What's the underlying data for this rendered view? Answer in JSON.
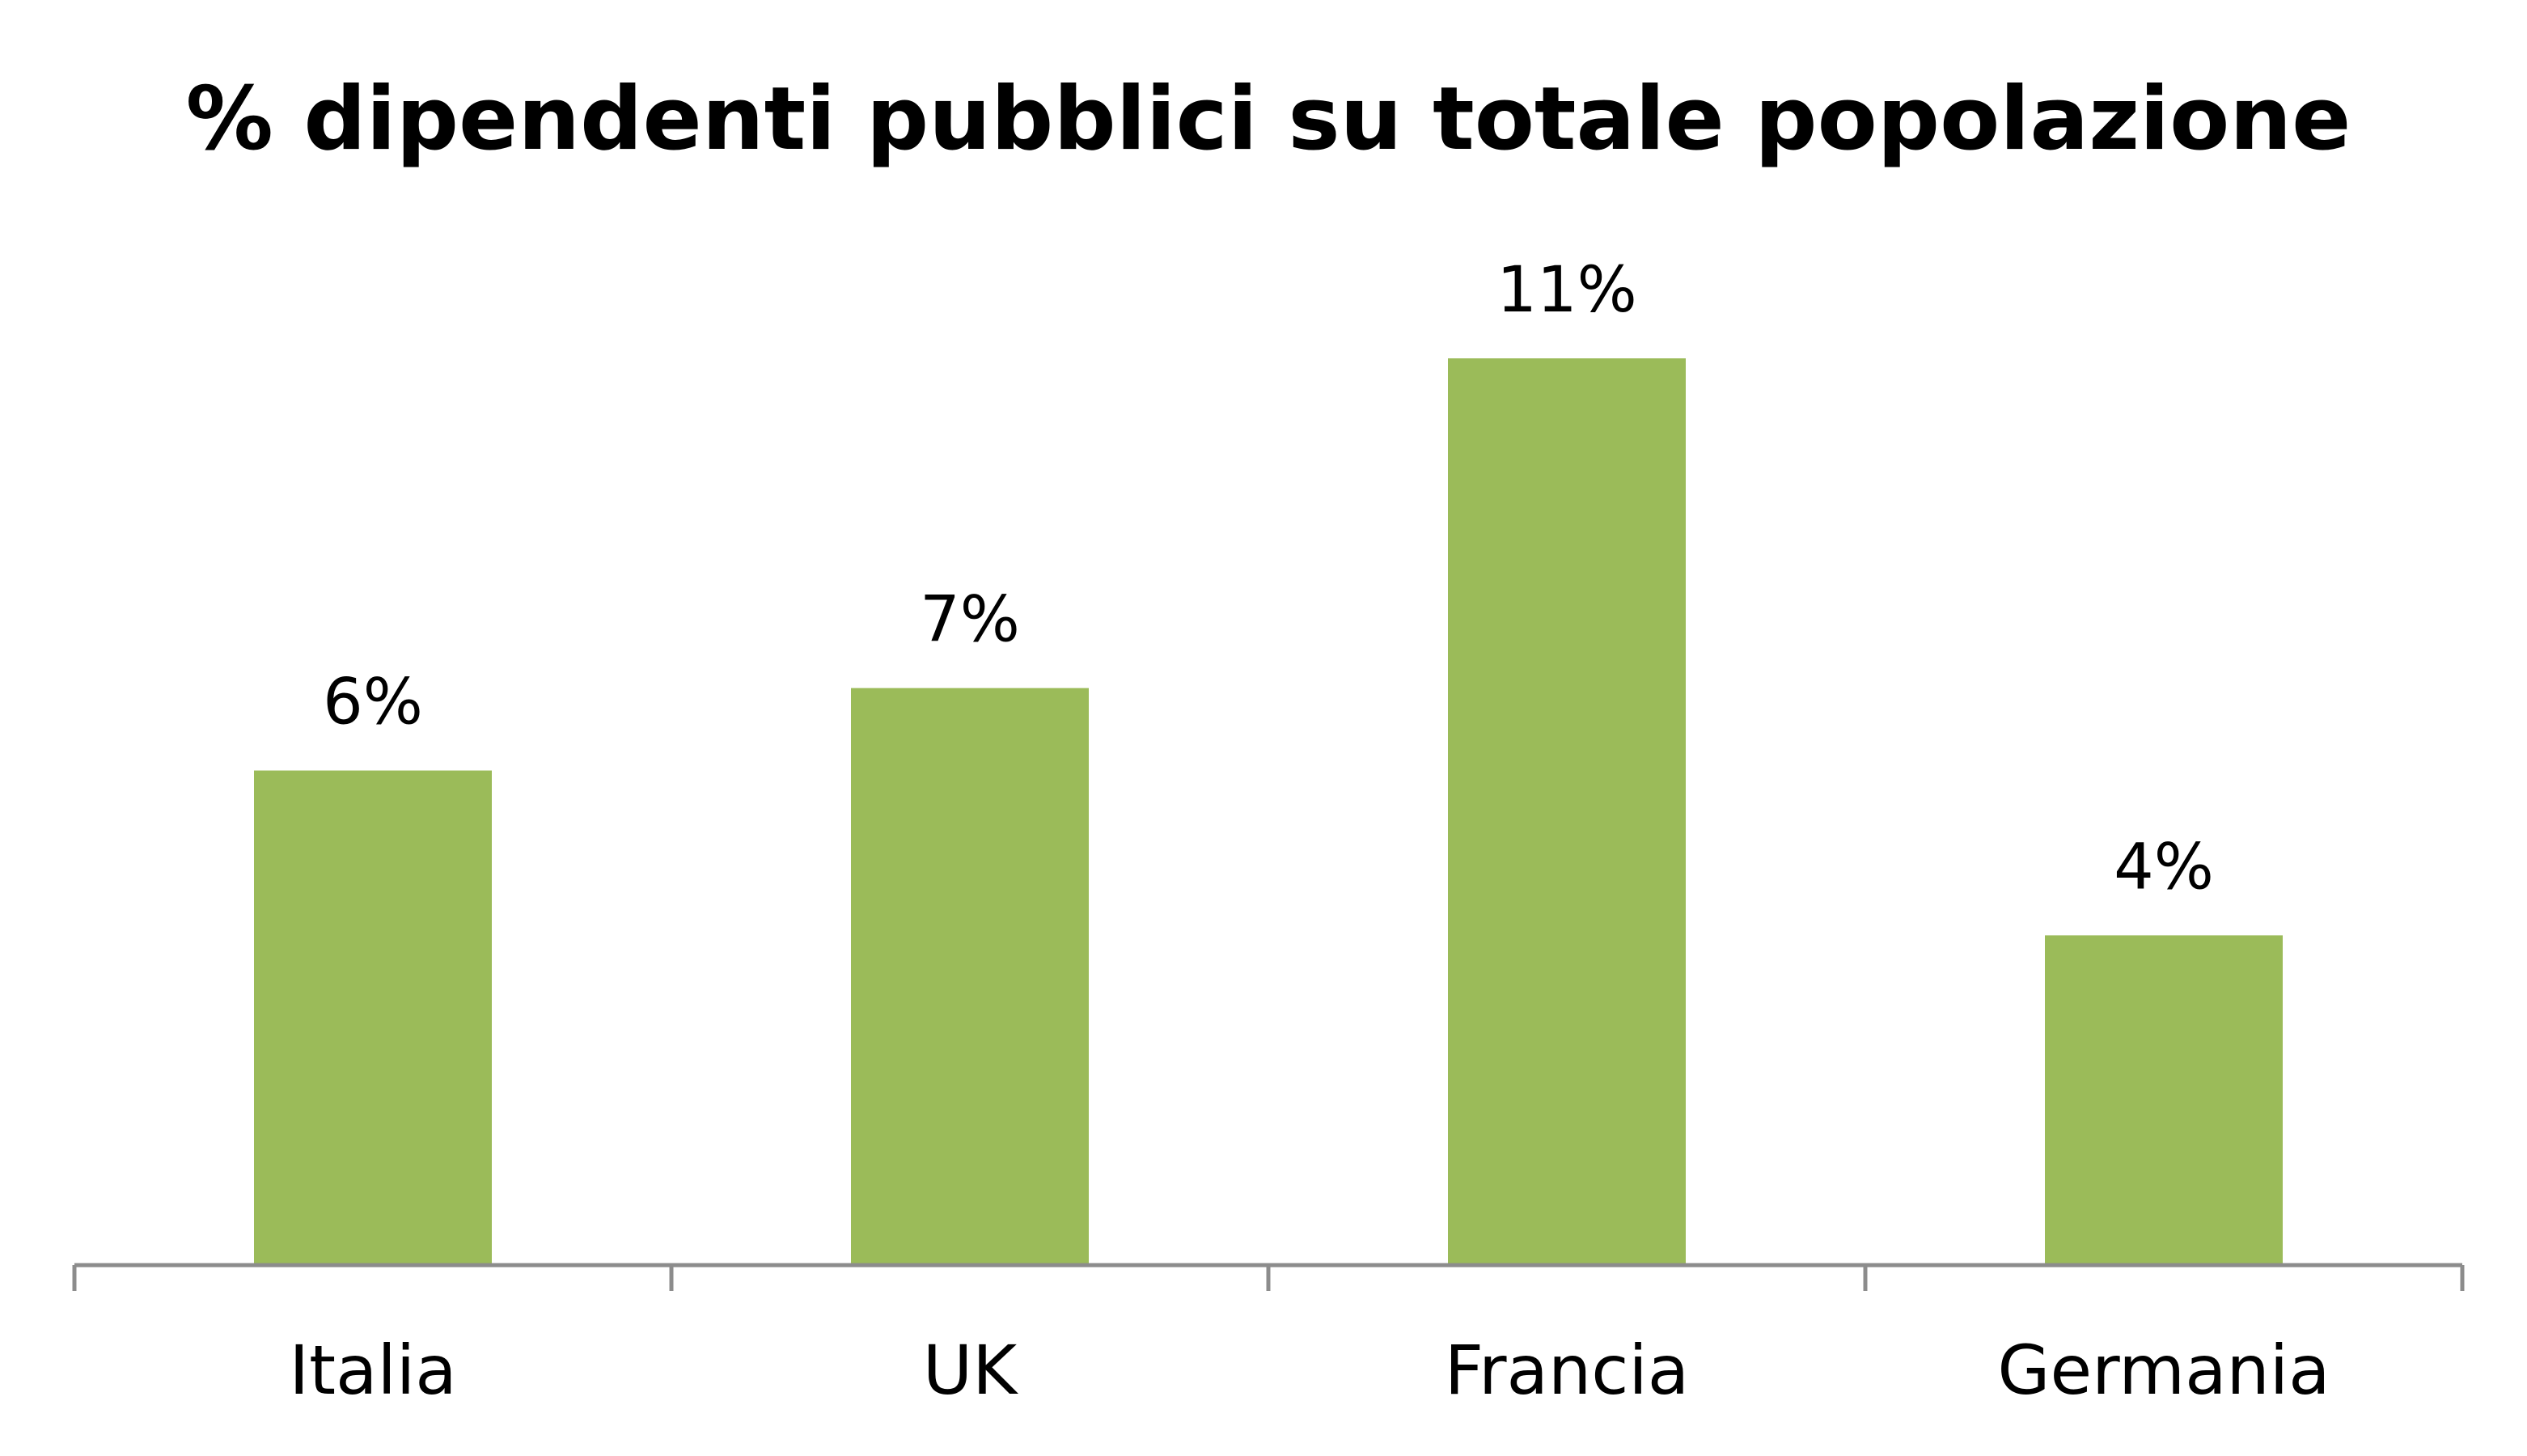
{
  "chart_data": {
    "type": "bar",
    "title": "% dipendenti pubblici su totale popolazione",
    "categories": [
      "Italia",
      "UK",
      "Francia",
      "Germania"
    ],
    "values": [
      6,
      7,
      11,
      4
    ],
    "data_labels": [
      "6%",
      "7%",
      "11%",
      "4%"
    ],
    "xlabel": "",
    "ylabel": "",
    "ylim": [
      0,
      11
    ],
    "grid": false,
    "legend": "none",
    "bar_color": "#9bbb59",
    "axis_color": "#8c8c8c"
  }
}
